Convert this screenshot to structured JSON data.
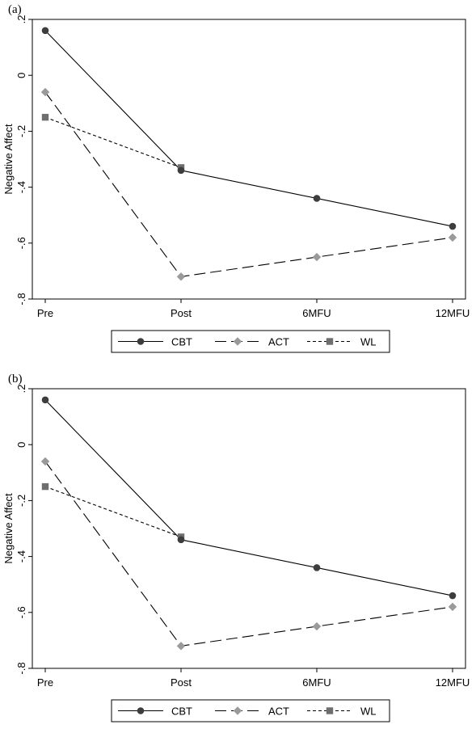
{
  "panels": [
    {
      "label": "(a)"
    },
    {
      "label": "(b)"
    }
  ],
  "colors": {
    "CBT": "#3d3d3d",
    "ACT": "#9a9a9a",
    "WL": "#6e6e6e",
    "line": "#000000"
  },
  "chart_data": [
    {
      "type": "line",
      "ylabel": "Negative Affect",
      "xlabel": "",
      "categories": [
        "Pre",
        "Post",
        "6MFU",
        "12MFU"
      ],
      "ylim": [
        -0.8,
        0.2
      ],
      "yticks": [
        0.2,
        0,
        -0.2,
        -0.4,
        -0.6,
        -0.8
      ],
      "ytick_labels": [
        ".2",
        "0",
        "-.2",
        "-.4",
        "-.6",
        "-.8"
      ],
      "grid": false,
      "legend_position": "bottom",
      "series": [
        {
          "name": "CBT",
          "marker": "circle",
          "dash": "solid",
          "values": [
            0.16,
            -0.34,
            -0.44,
            -0.54
          ]
        },
        {
          "name": "ACT",
          "marker": "diamond",
          "dash": "long-dash",
          "values": [
            -0.06,
            -0.72,
            -0.65,
            -0.58
          ]
        },
        {
          "name": "WL",
          "marker": "square",
          "dash": "short-dash",
          "values": [
            -0.15,
            -0.33,
            null,
            null
          ]
        }
      ]
    },
    {
      "type": "line",
      "ylabel": "Negative Affect",
      "xlabel": "",
      "categories": [
        "Pre",
        "Post",
        "6MFU",
        "12MFU"
      ],
      "ylim": [
        -0.8,
        0.2
      ],
      "yticks": [
        0.2,
        0,
        -0.2,
        -0.4,
        -0.6,
        -0.8
      ],
      "ytick_labels": [
        ".2",
        "0",
        "-.2",
        "-.4",
        "-.6",
        "-.8"
      ],
      "grid": false,
      "legend_position": "bottom",
      "series": [
        {
          "name": "CBT",
          "marker": "circle",
          "dash": "solid",
          "values": [
            0.16,
            -0.34,
            -0.44,
            -0.54
          ]
        },
        {
          "name": "ACT",
          "marker": "diamond",
          "dash": "long-dash",
          "values": [
            -0.06,
            -0.72,
            -0.65,
            -0.58
          ]
        },
        {
          "name": "WL",
          "marker": "square",
          "dash": "short-dash",
          "values": [
            -0.15,
            -0.33,
            null,
            null
          ]
        }
      ]
    }
  ]
}
